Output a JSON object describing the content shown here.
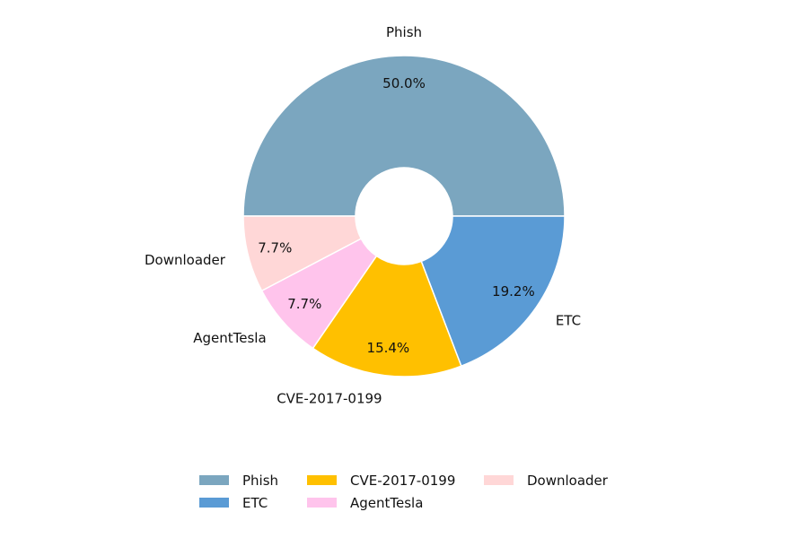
{
  "chart_data": {
    "type": "pie",
    "donut": true,
    "start_angle_deg": 180,
    "direction": "clockwise",
    "categories": [
      "Phish",
      "ETC",
      "CVE-2017-0199",
      "AgentTesla",
      "Downloader"
    ],
    "values": [
      50.0,
      19.2,
      15.4,
      7.7,
      7.7
    ],
    "labels": [
      "50.0%",
      "19.2%",
      "15.4%",
      "7.7%",
      "7.7%"
    ],
    "colors": [
      "#7ba6bf",
      "#5a9bd5",
      "#ffc000",
      "#ffc4ec",
      "#ffd7d7"
    ],
    "legend": {
      "placement": "bottom-center",
      "columns": 3,
      "items": [
        {
          "label": "Phish",
          "color": "#7ba6bf"
        },
        {
          "label": "ETC",
          "color": "#5a9bd5"
        },
        {
          "label": "CVE-2017-0199",
          "color": "#ffc000"
        },
        {
          "label": "AgentTesla",
          "color": "#ffc4ec"
        },
        {
          "label": "Downloader",
          "color": "#ffd7d7"
        }
      ]
    }
  }
}
